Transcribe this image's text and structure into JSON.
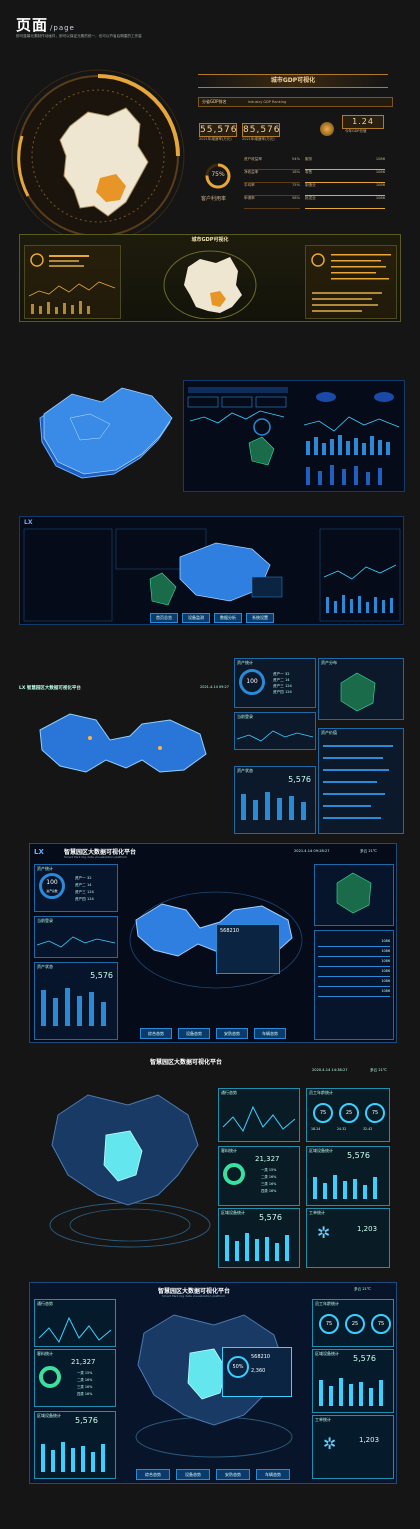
{
  "header": {
    "title": "页面",
    "subtitle": "/page",
    "description": "即可蓝幕元素制作动画件，即可以保证元素的统一，也可以节省后期重的工作量"
  },
  "s1": {
    "banner_title": "城市GDP可视化",
    "tab_label": "分省GDP排名",
    "tab_sub": "Industry GDP Ranking",
    "kpi1": "55,576",
    "kpi1_label": "2021年增速率(万元)",
    "kpi2": "85,576",
    "kpi2_label": "2021年增速率(万元)",
    "gdp_value": "1.24",
    "gdp_label": "今年GDP总值",
    "gauge_value": "75%",
    "gauge_label": "客户利用率",
    "stats": [
      {
        "label": "资产收益率",
        "value": "54%"
      },
      {
        "label": "净收益率",
        "value": "18%"
      },
      {
        "label": "平均率",
        "value": "75%"
      },
      {
        "label": "申请率",
        "value": "58%"
      }
    ],
    "right_stats": [
      {
        "label": "服务",
        "value": "1086"
      },
      {
        "label": "零售",
        "value": "1086"
      },
      {
        "label": "制造业",
        "value": "1086"
      },
      {
        "label": "批发业",
        "value": "1086"
      }
    ]
  },
  "s2": {
    "banner_title": "城市GDP可视化"
  },
  "s4": {
    "title": "LX",
    "nav": [
      "首页总览",
      "设备监测",
      "数据分析",
      "系统设置"
    ]
  },
  "s5": {
    "title": "LX 智慧园区大数据可视化平台",
    "date": "2021.4.14 09:27",
    "panel1": "资产统计",
    "gauge": "100",
    "p1_items": [
      {
        "label": "资产一",
        "value": "32"
      },
      {
        "label": "资产二",
        "value": "14"
      },
      {
        "label": "资产三",
        "value": "124"
      },
      {
        "label": "资产四",
        "value": "124"
      }
    ],
    "panel2": "当前登录",
    "panel3": "资产状态",
    "big_value": "5,576",
    "panel4": "资产分布",
    "panel5": "资产价值"
  },
  "s6": {
    "logo": "LX",
    "title": "智慧园区大数据可视化平台",
    "subtitle": "Smart Park big data visualization platform",
    "date": "2021.4.14 09:28:27",
    "weather": "多云 21℃",
    "panel1": "资产统计",
    "gauge": "100",
    "gauge_label": "资产总数",
    "p1_items": [
      {
        "label": "资产一",
        "value": "32"
      },
      {
        "label": "资产二",
        "value": "14"
      },
      {
        "label": "资产三",
        "value": "124"
      },
      {
        "label": "资产四",
        "value": "124"
      }
    ],
    "panel2": "当前登录",
    "panel3": "资产状态",
    "big_value": "5,576",
    "panel4": "资产分布",
    "panel5": "资产价值",
    "popup_value": "568210",
    "nav": [
      "综合态势",
      "设备态势",
      "安防态势",
      "车辆态势"
    ],
    "right_values": [
      "1086",
      "1086",
      "1086",
      "1086",
      "1086",
      "1086"
    ]
  },
  "s7": {
    "title": "智慧园区大数据可视化平台",
    "date": "2020.4.14 14:38:27",
    "weather": "多云 21℃",
    "card1": "通行态势",
    "card2": "员工年龄统计",
    "ages": [
      "75",
      "25",
      "75"
    ],
    "age_labels": [
      "18-24",
      "24-32",
      "32-42"
    ],
    "card3": "客料统计",
    "stat_value": "21,327",
    "card3_items": [
      {
        "label": "一类",
        "value": "15%"
      },
      {
        "label": "二类",
        "value": "16%"
      },
      {
        "label": "三类",
        "value": "16%"
      },
      {
        "label": "四类",
        "value": "16%"
      }
    ],
    "card4": "区域设备统计",
    "card4_value": "5,576",
    "card5": "区域设备统计",
    "card5_value": "5,576",
    "card6": "工单统计",
    "card6_value": "1,203"
  },
  "s8": {
    "title": "智慧园区大数据可视化平台",
    "subtitle": "Smart Park big data visualization platform",
    "weather": "多云 21℃",
    "left1": "通行态势",
    "left2": "客料统计",
    "left_value": "21,327",
    "left_items": [
      {
        "label": "一类",
        "value": "15%"
      },
      {
        "label": "二类",
        "value": "16%"
      },
      {
        "label": "三类",
        "value": "16%"
      },
      {
        "label": "四类",
        "value": "16%"
      }
    ],
    "left3": "区域设备统计",
    "left3_value": "5,576",
    "popup_pct": "50%",
    "popup_v1": "568210",
    "popup_v2": "2,360",
    "right1": "员工年龄统计",
    "ages": [
      "75",
      "25",
      "75"
    ],
    "right2": "区域设备统计",
    "right2_value": "5,576",
    "right3": "工单统计",
    "right3_value": "1,203",
    "nav": [
      "综合态势",
      "设备态势",
      "安防态势",
      "车辆态势"
    ]
  }
}
